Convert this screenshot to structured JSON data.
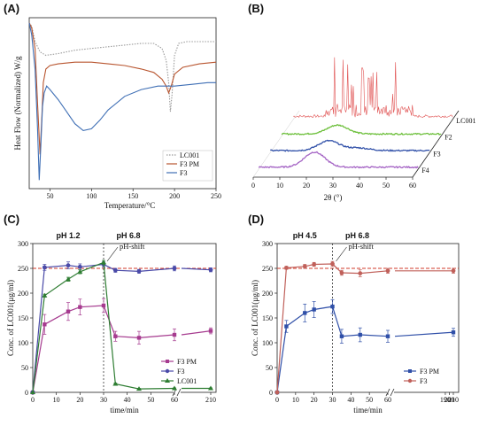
{
  "panels": {
    "A": {
      "letter": "(A)"
    },
    "B": {
      "letter": "(B)"
    },
    "C": {
      "letter": "(C)"
    },
    "D": {
      "letter": "(D)"
    }
  },
  "chart_data": [
    {
      "id": "A",
      "type": "line",
      "xlabel": "Temperature/°C",
      "ylabel": "Heat Flow (Normalized) W/g",
      "xlim": [
        25,
        250
      ],
      "xticks": [
        50,
        100,
        150,
        200,
        250
      ],
      "legend_position": "bottom-right",
      "colors": {
        "LC001": "#9a9a9a",
        "F3 PM": "#b8552f",
        "F3": "#3f6fb5"
      },
      "series": [
        {
          "name": "LC001",
          "style": "dotted",
          "x": [
            25,
            28,
            32,
            38,
            45,
            60,
            80,
            100,
            120,
            140,
            160,
            175,
            185,
            190,
            193,
            195,
            197,
            200,
            205,
            215,
            230,
            250
          ],
          "y": [
            0.97,
            0.95,
            0.86,
            0.8,
            0.78,
            0.79,
            0.81,
            0.82,
            0.83,
            0.84,
            0.85,
            0.85,
            0.82,
            0.75,
            0.62,
            0.45,
            0.55,
            0.78,
            0.85,
            0.86,
            0.86,
            0.86
          ]
        },
        {
          "name": "F3 PM",
          "x": [
            25,
            28,
            32,
            35,
            38,
            40,
            42,
            45,
            50,
            60,
            80,
            100,
            120,
            140,
            160,
            175,
            185,
            190,
            193,
            196,
            200,
            210,
            230,
            250
          ],
          "y": [
            0.97,
            0.94,
            0.82,
            0.5,
            0.2,
            0.4,
            0.62,
            0.7,
            0.72,
            0.73,
            0.74,
            0.74,
            0.73,
            0.72,
            0.7,
            0.68,
            0.64,
            0.6,
            0.56,
            0.6,
            0.67,
            0.71,
            0.73,
            0.74
          ]
        },
        {
          "name": "F3",
          "x": [
            25,
            28,
            32,
            35,
            37,
            39,
            41,
            43,
            46,
            50,
            60,
            70,
            80,
            90,
            100,
            110,
            120,
            140,
            160,
            180,
            200,
            220,
            240,
            250
          ],
          "y": [
            0.97,
            0.9,
            0.7,
            0.35,
            0.05,
            0.25,
            0.48,
            0.56,
            0.6,
            0.58,
            0.52,
            0.45,
            0.38,
            0.34,
            0.35,
            0.4,
            0.46,
            0.54,
            0.58,
            0.6,
            0.6,
            0.61,
            0.62,
            0.62
          ]
        }
      ]
    },
    {
      "id": "B",
      "type": "line",
      "xlabel": "2θ (°)",
      "xlim": [
        0,
        60
      ],
      "xticks": [
        0,
        10,
        20,
        30,
        40,
        50,
        60
      ],
      "colors": {
        "LC001": "#e05050",
        "F2": "#6cbf3a",
        "F3": "#2f4fa8",
        "F4": "#a463c4"
      },
      "series": [
        {
          "name": "LC001"
        },
        {
          "name": "F2"
        },
        {
          "name": "F3"
        },
        {
          "name": "F4"
        }
      ]
    },
    {
      "id": "C",
      "type": "line",
      "xlabel": "time/min",
      "ylabel": "Conc. of LC001(µg/ml)",
      "ylim": [
        0,
        300
      ],
      "yticks": [
        0,
        50,
        100,
        150,
        200,
        250,
        300
      ],
      "xticks": [
        0,
        10,
        20,
        30,
        40,
        50,
        60,
        210
      ],
      "x_break": true,
      "reference_line": 250,
      "phase_boundary_x": 30,
      "annotations": {
        "ph_left": "pH 1.2",
        "ph_right": "pH 6.8",
        "shift": "pH-shift"
      },
      "legend_position": "bottom-right",
      "colors": {
        "F3 PM": "#a63b8f",
        "F3": "#4a4aa8",
        "LC001": "#2e7d32"
      },
      "series": [
        {
          "name": "F3 PM",
          "x": [
            0,
            5,
            15,
            20,
            30,
            35,
            45,
            60,
            210
          ],
          "y": [
            0,
            137,
            163,
            172,
            175,
            113,
            110,
            116,
            124
          ]
        },
        {
          "name": "F3",
          "x": [
            0,
            5,
            15,
            20,
            30,
            35,
            45,
            60,
            210
          ],
          "y": [
            0,
            252,
            256,
            253,
            258,
            246,
            244,
            250,
            247
          ]
        },
        {
          "name": "LC001",
          "x": [
            0,
            5,
            15,
            20,
            30,
            35,
            45,
            60,
            210
          ],
          "y": [
            0,
            195,
            228,
            243,
            262,
            17,
            7,
            8,
            8
          ]
        }
      ]
    },
    {
      "id": "D",
      "type": "line",
      "xlabel": "time/min",
      "ylabel": "Conc. of LC001(µg/ml)",
      "ylim": [
        0,
        300
      ],
      "yticks": [
        0,
        50,
        100,
        150,
        200,
        250,
        300
      ],
      "xticks": [
        0,
        10,
        20,
        30,
        40,
        50,
        60,
        190,
        200,
        210
      ],
      "x_break": true,
      "reference_line": 250,
      "phase_boundary_x": 30,
      "annotations": {
        "ph_left": "pH 4.5",
        "ph_right": "pH 6.8",
        "shift": "pH-shift"
      },
      "legend_position": "bottom-right",
      "colors": {
        "F3 PM": "#2f4fa8",
        "F3": "#c0605a"
      },
      "series": [
        {
          "name": "F3 PM",
          "x": [
            0,
            5,
            15,
            20,
            30,
            35,
            45,
            60,
            210
          ],
          "y": [
            0,
            133,
            160,
            167,
            173,
            113,
            116,
            113,
            121
          ]
        },
        {
          "name": "F3",
          "x": [
            0,
            5,
            15,
            20,
            30,
            35,
            45,
            60,
            210
          ],
          "y": [
            0,
            251,
            254,
            258,
            259,
            241,
            240,
            245,
            245
          ]
        }
      ]
    }
  ]
}
